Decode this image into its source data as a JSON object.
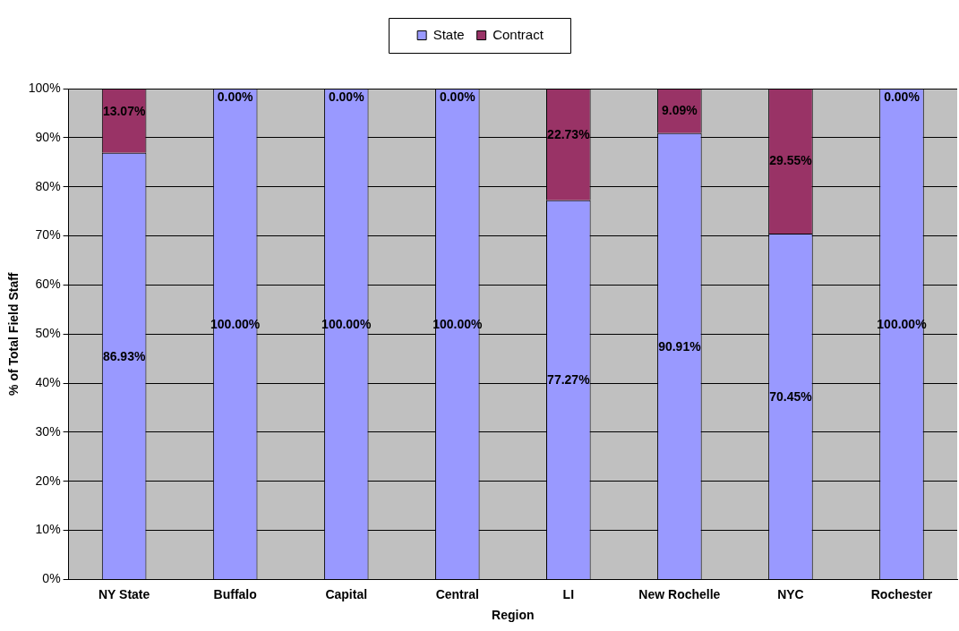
{
  "chart_data": {
    "type": "bar",
    "stacked": true,
    "xlabel": "Region",
    "ylabel": "% of Total Field Staff",
    "categories": [
      "NY State",
      "Buffalo",
      "Capital",
      "Central",
      "LI",
      "New Rochelle",
      "NYC",
      "Rochester"
    ],
    "series": [
      {
        "name": "State",
        "color": "#9999ff",
        "values": [
          86.93,
          100,
          100,
          100,
          77.27,
          90.91,
          70.45,
          100
        ],
        "value_labels": [
          "86.93%",
          "100.00%",
          "100.00%",
          "100.00%",
          "77.27%",
          "90.91%",
          "70.45%",
          "100.00%"
        ]
      },
      {
        "name": "Contract",
        "color": "#993366",
        "values": [
          13.07,
          0,
          0,
          0,
          22.73,
          9.09,
          29.55,
          0
        ],
        "value_labels": [
          "13.07%",
          "0.00%",
          "0.00%",
          "0.00%",
          "22.73%",
          "9.09%",
          "29.55%",
          "0.00%"
        ]
      }
    ],
    "ylim": [
      0,
      100
    ],
    "yticks": [
      {
        "value": 0,
        "label": "0%"
      },
      {
        "value": 10,
        "label": "10%"
      },
      {
        "value": 20,
        "label": "20%"
      },
      {
        "value": 30,
        "label": "30%"
      },
      {
        "value": 40,
        "label": "40%"
      },
      {
        "value": 50,
        "label": "50%"
      },
      {
        "value": 60,
        "label": "60%"
      },
      {
        "value": 70,
        "label": "70%"
      },
      {
        "value": 80,
        "label": "80%"
      },
      {
        "value": 90,
        "label": "90%"
      },
      {
        "value": 100,
        "label": "100%"
      }
    ],
    "grid": "y",
    "legend": "top"
  }
}
